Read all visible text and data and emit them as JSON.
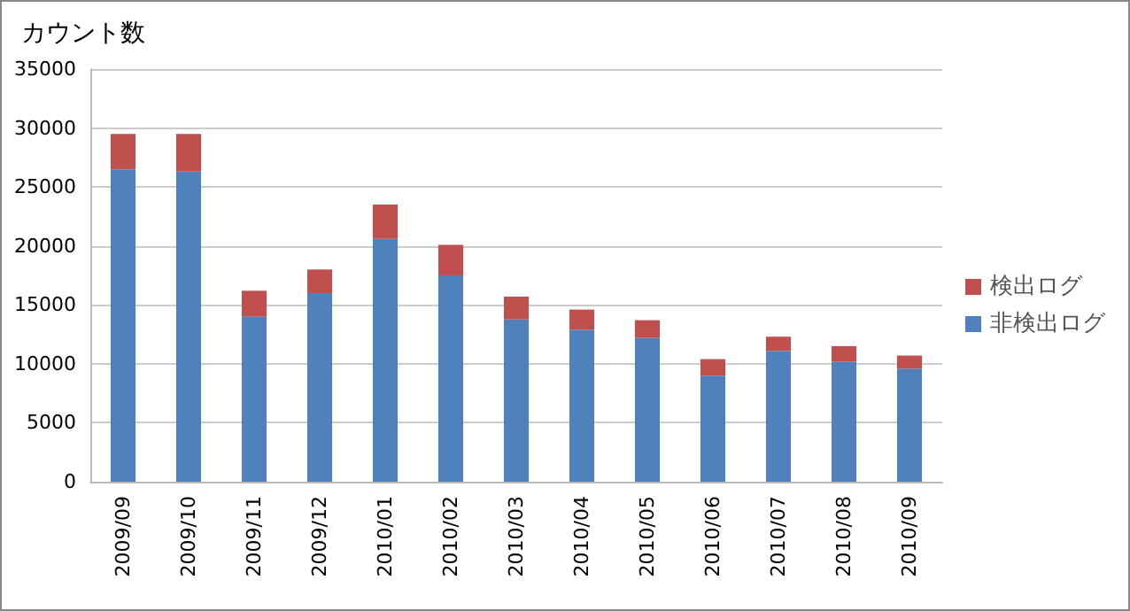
{
  "chart_data": {
    "type": "bar",
    "title": "カウント数",
    "stacked": true,
    "categories": [
      "2009/09",
      "2009/10",
      "2009/11",
      "2009/12",
      "2010/01",
      "2010/02",
      "2010/03",
      "2010/04",
      "2010/05",
      "2010/06",
      "2010/07",
      "2010/08",
      "2010/09"
    ],
    "series": [
      {
        "name": "非検出ログ",
        "color": "#4f81bd",
        "values": [
          26500,
          26300,
          14000,
          16000,
          20600,
          17500,
          13800,
          12900,
          12200,
          9000,
          11100,
          10200,
          9600
        ]
      },
      {
        "name": "検出ログ",
        "color": "#c0504d",
        "values": [
          3000,
          3200,
          2200,
          2000,
          2900,
          2600,
          1900,
          1700,
          1500,
          1400,
          1200,
          1300,
          1100
        ]
      }
    ],
    "ylim": [
      0,
      35000
    ],
    "yticks": [
      0,
      5000,
      10000,
      15000,
      20000,
      25000,
      30000,
      35000
    ],
    "grid": "y",
    "legend": "right"
  }
}
